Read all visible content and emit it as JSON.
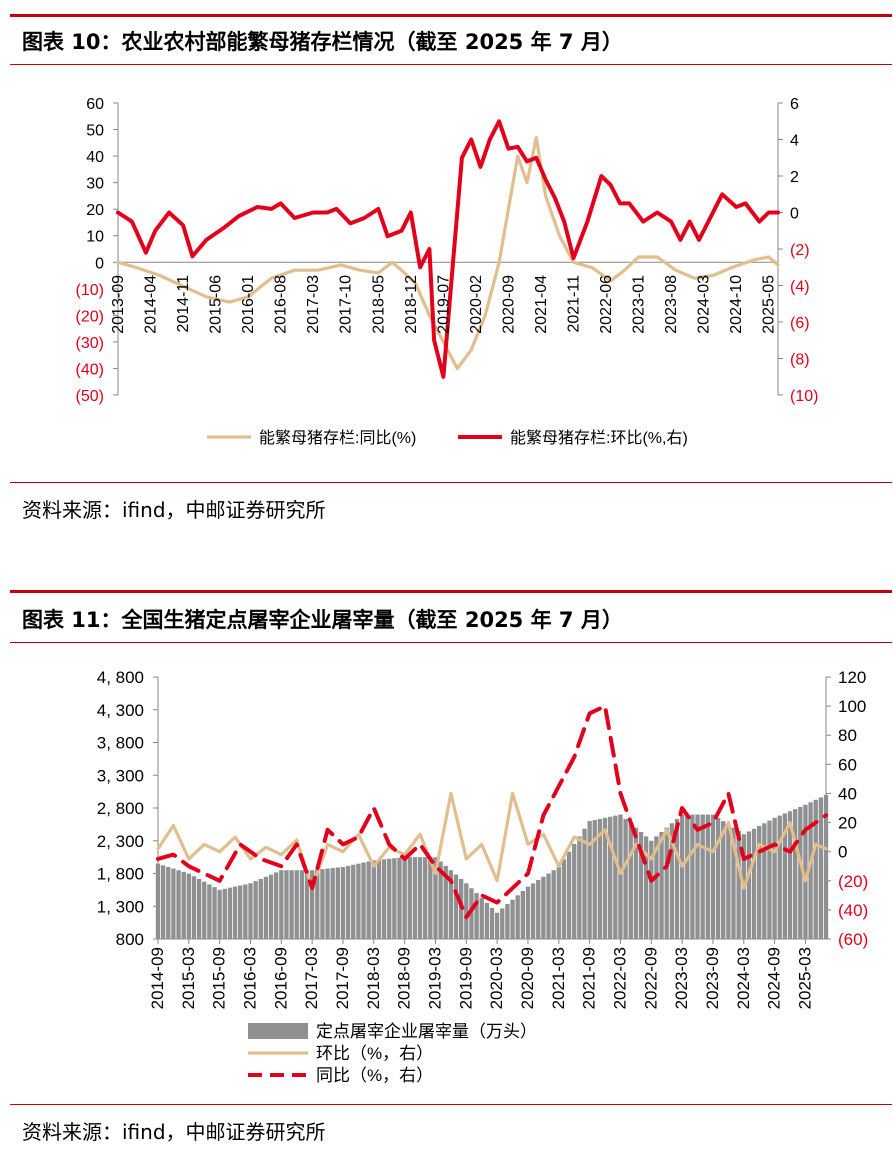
{
  "figure1": {
    "title": "图表 10：农业农村部能繁母猪存栏情况（截至 2025 年 7 月）",
    "source": "资料来源：ifind，中邮证券研究所"
  },
  "figure2": {
    "title": "图表 11：全国生猪定点屠宰企业屠宰量（截至 2025 年 7 月）",
    "source": "资料来源：ifind，中邮证券研究所"
  },
  "colors": {
    "title_rule": "#c0000a",
    "tan": "#e2be8c",
    "red": "#e3001b",
    "bar_gray": "#8f9092",
    "neg_label": "#e3001b"
  },
  "chart_data": [
    {
      "type": "line",
      "x_ticks": [
        "2013-09",
        "2014-04",
        "2014-11",
        "2015-06",
        "2016-01",
        "2016-08",
        "2017-03",
        "2017-10",
        "2018-05",
        "2018-12",
        "2019-07",
        "2020-02",
        "2020-09",
        "2021-04",
        "2021-11",
        "2022-06",
        "2023-01",
        "2023-08",
        "2024-03",
        "2024-10",
        "2025-05"
      ],
      "x_range": [
        "2013-09",
        "2025-07"
      ],
      "y_left": {
        "range": [
          -50,
          60
        ],
        "ticks": [
          "60",
          "50",
          "40",
          "30",
          "20",
          "10",
          "0",
          "(10)",
          "(20)",
          "(30)",
          "(40)",
          "(50)"
        ]
      },
      "y_right": {
        "range": [
          -10,
          6
        ],
        "ticks": [
          "6",
          "4",
          "2",
          "0",
          "(2)",
          "(4)",
          "(6)",
          "(8)",
          "(10)"
        ]
      },
      "legend": "bottom",
      "series": [
        {
          "name": "能繁母猪存栏:同比(%)",
          "axis": "left",
          "color": "tan",
          "points": [
            [
              "2013-09",
              0
            ],
            [
              "2014-01",
              -2
            ],
            [
              "2014-06",
              -5
            ],
            [
              "2014-11",
              -9
            ],
            [
              "2015-04",
              -13
            ],
            [
              "2015-09",
              -15
            ],
            [
              "2016-01",
              -13
            ],
            [
              "2016-06",
              -6
            ],
            [
              "2016-11",
              -3
            ],
            [
              "2017-04",
              -3
            ],
            [
              "2017-09",
              -1
            ],
            [
              "2018-01",
              -3
            ],
            [
              "2018-05",
              -4
            ],
            [
              "2018-08",
              0
            ],
            [
              "2018-10",
              -3
            ],
            [
              "2019-01",
              -8
            ],
            [
              "2019-04",
              -20
            ],
            [
              "2019-07",
              -30
            ],
            [
              "2019-10",
              -40
            ],
            [
              "2020-01",
              -33
            ],
            [
              "2020-04",
              -20
            ],
            [
              "2020-07",
              0
            ],
            [
              "2020-09",
              20
            ],
            [
              "2020-11",
              40
            ],
            [
              "2021-01",
              30
            ],
            [
              "2021-03",
              47
            ],
            [
              "2021-05",
              25
            ],
            [
              "2021-08",
              10
            ],
            [
              "2021-11",
              0
            ],
            [
              "2022-03",
              -2
            ],
            [
              "2022-07",
              -7
            ],
            [
              "2022-10",
              -3
            ],
            [
              "2023-01",
              2
            ],
            [
              "2023-05",
              2
            ],
            [
              "2023-09",
              -3
            ],
            [
              "2024-01",
              -6
            ],
            [
              "2024-05",
              -5
            ],
            [
              "2024-09",
              -2
            ],
            [
              "2025-02",
              1
            ],
            [
              "2025-05",
              2
            ],
            [
              "2025-07",
              -1
            ]
          ]
        },
        {
          "name": "能繁母猪存栏:环比(%,右)",
          "axis": "right",
          "color": "red",
          "points": [
            [
              "2013-09",
              0
            ],
            [
              "2013-12",
              -0.5
            ],
            [
              "2014-03",
              -2.2
            ],
            [
              "2014-05",
              -1
            ],
            [
              "2014-08",
              0
            ],
            [
              "2014-11",
              -0.7
            ],
            [
              "2015-01",
              -2.4
            ],
            [
              "2015-04",
              -1.5
            ],
            [
              "2015-08",
              -0.8
            ],
            [
              "2015-11",
              -0.2
            ],
            [
              "2016-03",
              0.3
            ],
            [
              "2016-06",
              0.2
            ],
            [
              "2016-08",
              0.5
            ],
            [
              "2016-11",
              -0.3
            ],
            [
              "2017-03",
              0
            ],
            [
              "2017-06",
              0
            ],
            [
              "2017-08",
              0.2
            ],
            [
              "2017-11",
              -0.6
            ],
            [
              "2018-02",
              -0.3
            ],
            [
              "2018-05",
              0.2
            ],
            [
              "2018-07",
              -1.3
            ],
            [
              "2018-10",
              -1.0
            ],
            [
              "2018-12",
              0
            ],
            [
              "2019-02",
              -3.0
            ],
            [
              "2019-04",
              -2.0
            ],
            [
              "2019-05",
              -7.0
            ],
            [
              "2019-07",
              -9.0
            ],
            [
              "2019-09",
              -3.0
            ],
            [
              "2019-11",
              3.0
            ],
            [
              "2020-01",
              4.0
            ],
            [
              "2020-03",
              2.5
            ],
            [
              "2020-05",
              4.0
            ],
            [
              "2020-07",
              5.0
            ],
            [
              "2020-09",
              3.5
            ],
            [
              "2020-11",
              3.6
            ],
            [
              "2021-01",
              2.8
            ],
            [
              "2021-03",
              3.0
            ],
            [
              "2021-05",
              1.8
            ],
            [
              "2021-07",
              0.8
            ],
            [
              "2021-09",
              -0.5
            ],
            [
              "2021-11",
              -2.5
            ],
            [
              "2022-02",
              -0.5
            ],
            [
              "2022-05",
              2.0
            ],
            [
              "2022-07",
              1.5
            ],
            [
              "2022-09",
              0.5
            ],
            [
              "2022-11",
              0.5
            ],
            [
              "2023-02",
              -0.5
            ],
            [
              "2023-05",
              0
            ],
            [
              "2023-08",
              -0.5
            ],
            [
              "2023-10",
              -1.5
            ],
            [
              "2023-12",
              -0.5
            ],
            [
              "2024-02",
              -1.5
            ],
            [
              "2024-04",
              -0.5
            ],
            [
              "2024-07",
              1.0
            ],
            [
              "2024-10",
              0.3
            ],
            [
              "2024-12",
              0.5
            ],
            [
              "2025-03",
              -0.5
            ],
            [
              "2025-05",
              0
            ],
            [
              "2025-07",
              0
            ]
          ]
        }
      ]
    },
    {
      "type": "bar+line",
      "x_ticks": [
        "2014-09",
        "2015-03",
        "2015-09",
        "2016-03",
        "2016-09",
        "2017-03",
        "2017-09",
        "2018-03",
        "2018-09",
        "2019-03",
        "2019-09",
        "2020-03",
        "2020-09",
        "2021-03",
        "2021-09",
        "2022-03",
        "2022-09",
        "2023-03",
        "2023-09",
        "2024-03",
        "2024-09",
        "2025-03"
      ],
      "x_range": [
        "2014-09",
        "2025-07"
      ],
      "y_left": {
        "range": [
          800,
          4800
        ],
        "ticks": [
          "4, 800",
          "4, 300",
          "3, 800",
          "3, 300",
          "2, 800",
          "2, 300",
          "1, 800",
          "1, 300",
          "800"
        ]
      },
      "y_right": {
        "range": [
          -60,
          120
        ],
        "ticks": [
          "120",
          "100",
          "80",
          "60",
          "40",
          "20",
          "0",
          "(20)",
          "(40)",
          "(60)"
        ]
      },
      "legend": "bottom",
      "bars": {
        "name": "定点屠宰企业屠宰量（万头）",
        "axis": "left",
        "color": "bar_gray",
        "points": [
          [
            "2014-09",
            1950
          ],
          [
            "2015-03",
            1800
          ],
          [
            "2015-09",
            1550
          ],
          [
            "2016-03",
            1650
          ],
          [
            "2016-09",
            1850
          ],
          [
            "2017-03",
            1850
          ],
          [
            "2017-09",
            1900
          ],
          [
            "2018-03",
            2000
          ],
          [
            "2018-09",
            2050
          ],
          [
            "2019-03",
            2050
          ],
          [
            "2019-09",
            1650
          ],
          [
            "2020-03",
            1200
          ],
          [
            "2020-09",
            1600
          ],
          [
            "2021-03",
            1900
          ],
          [
            "2021-09",
            2600
          ],
          [
            "2022-03",
            2700
          ],
          [
            "2022-09",
            2300
          ],
          [
            "2023-03",
            2700
          ],
          [
            "2023-09",
            2700
          ],
          [
            "2024-03",
            2400
          ],
          [
            "2024-09",
            2650
          ],
          [
            "2025-03",
            2850
          ],
          [
            "2025-07",
            3000
          ]
        ]
      },
      "series": [
        {
          "name": "环比（%，右）",
          "axis": "right",
          "color": "tan",
          "points": [
            [
              "2014-09",
              2
            ],
            [
              "2014-12",
              18
            ],
            [
              "2015-03",
              -5
            ],
            [
              "2015-06",
              5
            ],
            [
              "2015-09",
              0
            ],
            [
              "2015-12",
              10
            ],
            [
              "2016-03",
              -5
            ],
            [
              "2016-06",
              3
            ],
            [
              "2016-09",
              -2
            ],
            [
              "2016-12",
              8
            ],
            [
              "2017-03",
              -25
            ],
            [
              "2017-06",
              5
            ],
            [
              "2017-09",
              0
            ],
            [
              "2017-12",
              12
            ],
            [
              "2018-03",
              -10
            ],
            [
              "2018-06",
              3
            ],
            [
              "2018-09",
              -2
            ],
            [
              "2018-12",
              12
            ],
            [
              "2019-03",
              -15
            ],
            [
              "2019-06",
              40
            ],
            [
              "2019-09",
              -5
            ],
            [
              "2019-12",
              5
            ],
            [
              "2020-03",
              -20
            ],
            [
              "2020-06",
              40
            ],
            [
              "2020-09",
              5
            ],
            [
              "2020-12",
              12
            ],
            [
              "2021-03",
              -10
            ],
            [
              "2021-06",
              10
            ],
            [
              "2021-09",
              5
            ],
            [
              "2021-12",
              15
            ],
            [
              "2022-03",
              -15
            ],
            [
              "2022-06",
              5
            ],
            [
              "2022-09",
              -5
            ],
            [
              "2022-12",
              15
            ],
            [
              "2023-03",
              -10
            ],
            [
              "2023-06",
              5
            ],
            [
              "2023-09",
              0
            ],
            [
              "2023-12",
              20
            ],
            [
              "2024-03",
              -25
            ],
            [
              "2024-06",
              5
            ],
            [
              "2024-09",
              0
            ],
            [
              "2024-12",
              20
            ],
            [
              "2025-03",
              -20
            ],
            [
              "2025-05",
              5
            ],
            [
              "2025-07",
              2
            ]
          ]
        },
        {
          "name": "同比（%，右）",
          "axis": "right",
          "color": "red",
          "dashed": true,
          "points": [
            [
              "2014-09",
              -5
            ],
            [
              "2014-12",
              -2
            ],
            [
              "2015-03",
              -10
            ],
            [
              "2015-06",
              -15
            ],
            [
              "2015-09",
              -20
            ],
            [
              "2016-01",
              5
            ],
            [
              "2016-05",
              -5
            ],
            [
              "2016-09",
              -10
            ],
            [
              "2016-12",
              5
            ],
            [
              "2017-03",
              -25
            ],
            [
              "2017-06",
              15
            ],
            [
              "2017-09",
              5
            ],
            [
              "2017-12",
              10
            ],
            [
              "2018-03",
              30
            ],
            [
              "2018-06",
              5
            ],
            [
              "2018-09",
              -5
            ],
            [
              "2018-12",
              5
            ],
            [
              "2019-03",
              -10
            ],
            [
              "2019-06",
              -20
            ],
            [
              "2019-09",
              -45
            ],
            [
              "2019-12",
              -30
            ],
            [
              "2020-03",
              -35
            ],
            [
              "2020-06",
              -25
            ],
            [
              "2020-09",
              -15
            ],
            [
              "2020-12",
              25
            ],
            [
              "2021-03",
              45
            ],
            [
              "2021-06",
              65
            ],
            [
              "2021-09",
              95
            ],
            [
              "2021-12",
              100
            ],
            [
              "2022-03",
              40
            ],
            [
              "2022-06",
              10
            ],
            [
              "2022-09",
              -20
            ],
            [
              "2022-12",
              -10
            ],
            [
              "2023-03",
              30
            ],
            [
              "2023-06",
              15
            ],
            [
              "2023-09",
              20
            ],
            [
              "2023-12",
              40
            ],
            [
              "2024-03",
              -5
            ],
            [
              "2024-06",
              0
            ],
            [
              "2024-09",
              5
            ],
            [
              "2024-12",
              0
            ],
            [
              "2025-03",
              15
            ],
            [
              "2025-07",
              25
            ]
          ]
        }
      ]
    }
  ]
}
